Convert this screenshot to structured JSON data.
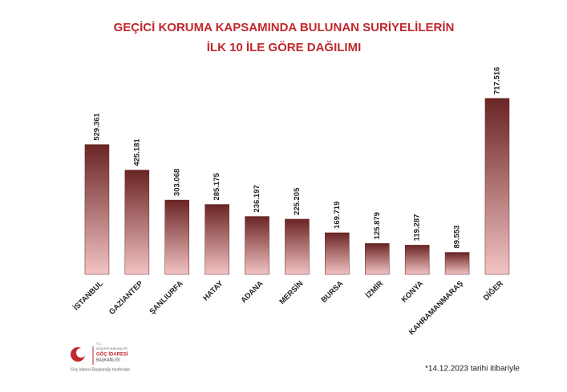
{
  "chart_data": {
    "type": "bar",
    "title": [
      "GEÇİCİ KORUMA KAPSAMINDA BULUNAN SURİYELİLERİN",
      "İLK 10 İLE GÖRE DAĞILIMI"
    ],
    "categories": [
      "İSTANBUL",
      "GAZİANTEP",
      "ŞANLIURFA",
      "HATAY",
      "ADANA",
      "MERSİN",
      "BURSA",
      "İZMİR",
      "KONYA",
      "KAHRAMANMARAŞ",
      "DİĞER"
    ],
    "values": [
      529361,
      425181,
      303068,
      285175,
      236197,
      225205,
      169719,
      125879,
      119287,
      89553,
      717516
    ],
    "value_labels": [
      "529.361",
      "425.181",
      "303.068",
      "285.175",
      "236.197",
      "225.205",
      "169.719",
      "125.879",
      "119.287",
      "89.553",
      "717.516"
    ],
    "gradient": [
      "#6a2424",
      "#f3c3c3"
    ],
    "title_color": "#c0282d",
    "footnote": "*14.12.2023 tarihi itibariyle"
  },
  "logo": {
    "lines": [
      "T.C.",
      "İÇİŞLERİ BAKANLIĞI",
      "GÖÇ İDARESİ",
      "BAŞKANLIĞI"
    ],
    "caption": "Göç İdaresi Başkanlığı tarafından"
  }
}
